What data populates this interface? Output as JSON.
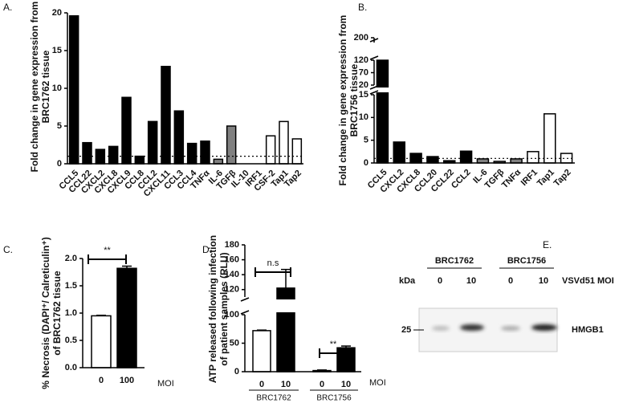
{
  "chart_data": [
    {
      "type": "bar",
      "panel_label": "A.",
      "ylabel": [
        "Fold change in gene expression from",
        "BRC1762 tissue"
      ],
      "categories": [
        "CCL5",
        "CCL22",
        "CXCL2",
        "CXCL8",
        "CXCL9",
        "CCL8",
        "CCL2",
        "CXCL11",
        "CCL3",
        "CCL4",
        "TNFα",
        "IL-6",
        "TGFβ",
        "IL-10",
        "IRF1",
        "CSF-2",
        "Tap1",
        "Tap2"
      ],
      "values": [
        19.6,
        2.8,
        1.9,
        2.3,
        8.8,
        1.0,
        5.6,
        12.9,
        7.0,
        2.7,
        3.0,
        0.6,
        5.0,
        0,
        0,
        3.7,
        5.6,
        3.3
      ],
      "colors": [
        "#000000",
        "#000000",
        "#000000",
        "#000000",
        "#000000",
        "#000000",
        "#000000",
        "#000000",
        "#000000",
        "#000000",
        "#000000",
        "#808080",
        "#808080",
        "#ffffff",
        "#ffffff",
        "#ffffff",
        "#ffffff",
        "#ffffff"
      ],
      "ylim": [
        0,
        20
      ],
      "yticks": [
        0,
        5,
        10,
        15,
        20
      ],
      "reference_line": 1
    },
    {
      "type": "bar",
      "panel_label": "B.",
      "ylabel": [
        "Fold change in gene expression from",
        "BRC1756 tissue"
      ],
      "categories": [
        "CCL5",
        "CXCL2",
        "CXCL8",
        "CCL20",
        "CCL22",
        "CCL2",
        "IL-6",
        "TGFβ",
        "TNFα",
        "IRF1",
        "Tap1",
        "Tap2"
      ],
      "values": [
        120,
        4.6,
        2.1,
        1.4,
        0.5,
        2.6,
        0.9,
        0.35,
        0.9,
        2.5,
        10.8,
        2.1
      ],
      "colors": [
        "#000000",
        "#000000",
        "#000000",
        "#000000",
        "#000000",
        "#000000",
        "#808080",
        "#808080",
        "#808080",
        "#ffffff",
        "#ffffff",
        "#ffffff"
      ],
      "ylim": [
        0,
        200
      ],
      "y_breaks": [
        [
          15,
          20
        ],
        [
          120,
          200
        ]
      ],
      "yticks": [
        0,
        5,
        10,
        15,
        20,
        70,
        120,
        200
      ],
      "reference_line": 1
    },
    {
      "type": "bar",
      "panel_label": "C.",
      "ylabel": [
        "% Necrosis (DAPI⁺/ Calreticulin⁺)",
        "of BRC1762 tissue"
      ],
      "categories": [
        "0",
        "100"
      ],
      "xlabel": "MOI",
      "values": [
        0.95,
        1.82
      ],
      "errors": [
        0.01,
        0.04
      ],
      "colors": [
        "#ffffff",
        "#000000"
      ],
      "ylim": [
        0,
        2
      ],
      "yticks": [
        {
          "value": 0,
          "label": "0.0"
        },
        {
          "value": 0.5,
          "label": "0.5"
        },
        {
          "value": 1,
          "label": "1.0"
        },
        {
          "value": 1.5,
          "label": "1.5"
        },
        {
          "value": 2,
          "label": "2.0"
        }
      ],
      "annotations": [
        "**"
      ]
    },
    {
      "type": "bar",
      "panel_label": "D.",
      "ylabel": [
        "ATP released following infection",
        "of patient samples (RLU)"
      ],
      "categories": [
        "0",
        "10",
        "0",
        "10"
      ],
      "groups": [
        "BRC1762",
        "BRC1756"
      ],
      "xlabel": "MOI",
      "values": [
        72,
        122,
        2,
        42
      ],
      "errors": [
        1,
        25,
        1,
        3
      ],
      "colors": [
        "#ffffff",
        "#000000",
        "#ffffff",
        "#000000"
      ],
      "ylim": [
        0,
        180
      ],
      "y_breaks": [
        [
          100,
          110
        ]
      ],
      "yticks": [
        0,
        50,
        100,
        120,
        140,
        160,
        180
      ],
      "annotations": [
        "n.s",
        "**"
      ]
    }
  ],
  "blot": {
    "panel_label": "E.",
    "samples": [
      "BRC1762",
      "BRC1756"
    ],
    "unit_label": "kDa",
    "lanes": [
      "0",
      "10",
      "0",
      "10"
    ],
    "treatment_label": "VSVd51 MOI",
    "marker": "25",
    "protein": "HMGB1"
  }
}
